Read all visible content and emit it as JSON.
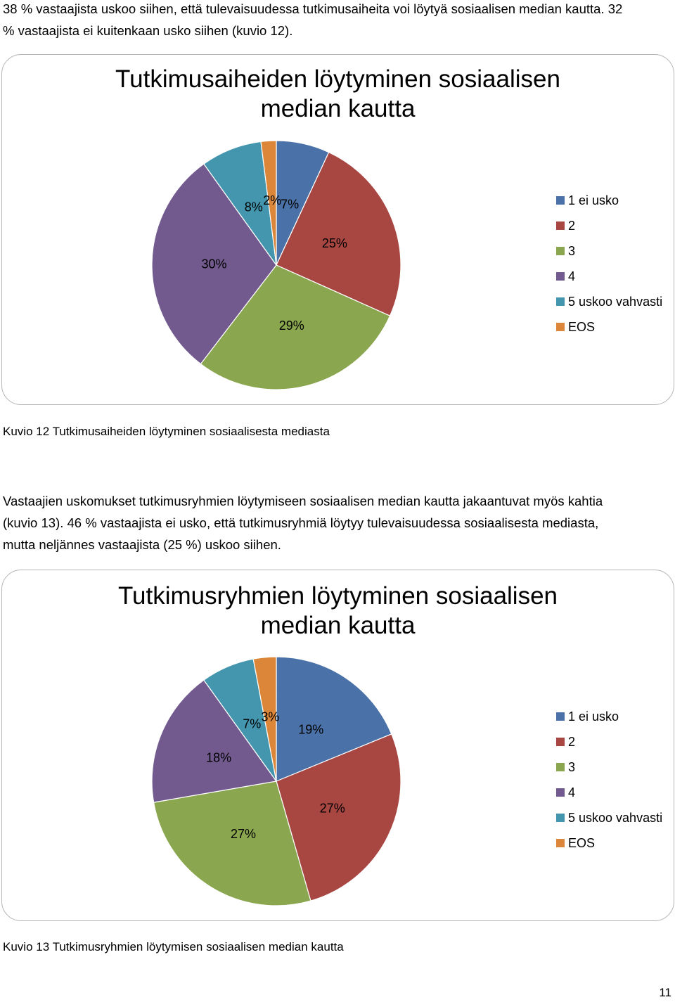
{
  "intro_paragraph": {
    "lines": [
      "38 % vastaajista uskoo siihen, että tulevaisuudessa tutkimusaiheita voi löytyä sosiaalisen median kautta. 32",
      "% vastaajista ei kuitenkaan usko siihen (kuvio 12)."
    ]
  },
  "chart1": {
    "title_lines": [
      "Tutkimusaiheiden löytyminen sosiaalisen",
      "median kautta"
    ],
    "caption": "Kuvio 12 Tutkimusaiheiden löytyminen sosiaalisesta mediasta"
  },
  "middle_paragraph": {
    "lines": [
      "Vastaajien uskomukset tutkimusryhmien löytymiseen sosiaalisen median kautta jakaantuvat myös kahtia",
      "(kuvio 13). 46 % vastaajista ei usko, että tutkimusryhmiä löytyy tulevaisuudessa sosiaalisesta mediasta,",
      "mutta neljännes vastaajista (25 %) uskoo siihen."
    ]
  },
  "chart2": {
    "title_lines": [
      "Tutkimusryhmien löytyminen sosiaalisen",
      "median kautta"
    ],
    "caption": "Kuvio 13 Tutkimusryhmien löytymisen sosiaalisen median kautta"
  },
  "page_number": "11",
  "chart_data": [
    {
      "type": "pie",
      "title": "Tutkimusaiheiden löytyminen sosiaalisen median kautta",
      "categories": [
        "1 ei usko",
        "2",
        "3",
        "4",
        "5 uskoo vahvasti",
        "EOS"
      ],
      "values": [
        7,
        25,
        29,
        30,
        8,
        2
      ],
      "labels": [
        "7%",
        "25%",
        "29%",
        "30%",
        "8%",
        "2%"
      ],
      "colors": [
        "#4A72A8",
        "#A84642",
        "#8AA64E",
        "#725A8E",
        "#4496AE",
        "#DB8639"
      ],
      "legend_position": "right"
    },
    {
      "type": "pie",
      "title": "Tutkimusryhmien löytyminen sosiaalisen median kautta",
      "categories": [
        "1 ei usko",
        "2",
        "3",
        "4",
        "5 uskoo vahvasti",
        "EOS"
      ],
      "values": [
        19,
        27,
        27,
        18,
        7,
        3
      ],
      "labels": [
        "19%",
        "27%",
        "27%",
        "18%",
        "7%",
        "3%"
      ],
      "colors": [
        "#4A72A8",
        "#A84642",
        "#8AA64E",
        "#725A8E",
        "#4496AE",
        "#DB8639"
      ],
      "legend_position": "right"
    }
  ]
}
